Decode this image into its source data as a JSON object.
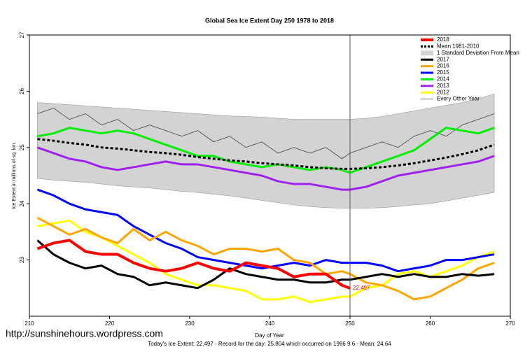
{
  "chart_data": {
    "type": "line",
    "title": "Global Sea Ice Extent Day 250 1978 to 2018",
    "xlabel": "Day of Year",
    "ylabel": "Ice Extent in millions of sq. km.",
    "footer": "Today's Ice Extent: 22.497  - Record for the day: 25.804 which occurred on 1996 9 6  - Mean: 24.64",
    "watermark": "http://sunshinehours.wordpress.com",
    "xlim": [
      210,
      270
    ],
    "xticks": [
      210,
      220,
      230,
      240,
      250,
      260,
      270
    ],
    "ylim": [
      22,
      27
    ],
    "yticks": [
      23,
      24,
      25,
      26,
      27
    ],
    "vline": 250,
    "legend": "upper right",
    "x": [
      211,
      213,
      215,
      217,
      219,
      221,
      223,
      225,
      227,
      229,
      231,
      233,
      235,
      237,
      239,
      241,
      243,
      245,
      247,
      249,
      250,
      252,
      254,
      256,
      258,
      260,
      262,
      264,
      266,
      268
    ],
    "series": [
      {
        "name": "2018",
        "color": "#ff0000",
        "width": 4,
        "values": [
          23.2,
          23.3,
          23.35,
          23.15,
          23.1,
          23.1,
          22.95,
          22.85,
          22.8,
          22.85,
          22.95,
          22.85,
          22.8,
          22.95,
          22.9,
          22.85,
          22.7,
          22.75,
          22.75,
          22.55,
          22.497,
          null,
          null,
          null,
          null,
          null,
          null,
          null,
          null,
          null
        ]
      },
      {
        "name": "Mean 1981-2010",
        "color": "#000000",
        "width": 3,
        "dash": true,
        "values": [
          25.15,
          25.12,
          25.08,
          25.05,
          25.0,
          24.98,
          24.95,
          24.92,
          24.9,
          24.87,
          24.83,
          24.8,
          24.77,
          24.75,
          24.72,
          24.7,
          24.68,
          24.65,
          24.63,
          24.62,
          24.62,
          24.63,
          24.65,
          24.68,
          24.72,
          24.77,
          24.82,
          24.88,
          24.95,
          25.05
        ]
      },
      {
        "name": "1 Standard Deviation From Mean",
        "color": "#d3d3d3",
        "band": true,
        "values": [
          25.8,
          25.78,
          25.76,
          25.74,
          25.72,
          25.7,
          25.68,
          25.66,
          25.64,
          25.62,
          25.6,
          25.58,
          25.56,
          25.55,
          25.54,
          25.52,
          25.5,
          25.5,
          25.5,
          25.5,
          25.5,
          25.52,
          25.55,
          25.6,
          25.65,
          25.7,
          25.75,
          25.8,
          25.87,
          25.95
        ],
        "lower": [
          24.45,
          24.42,
          24.4,
          24.38,
          24.35,
          24.32,
          24.3,
          24.28,
          24.25,
          24.22,
          24.2,
          24.17,
          24.14,
          24.1,
          24.06,
          24.02,
          23.98,
          23.95,
          23.93,
          23.92,
          23.92,
          23.92,
          23.93,
          23.95,
          23.98,
          24.0,
          24.05,
          24.1,
          24.15,
          24.2
        ]
      },
      {
        "name": "2017",
        "color": "#000000",
        "width": 3,
        "values": [
          23.35,
          23.1,
          22.95,
          22.85,
          22.9,
          22.75,
          22.7,
          22.55,
          22.6,
          22.55,
          22.5,
          22.65,
          22.85,
          22.75,
          22.7,
          22.65,
          22.65,
          22.6,
          22.6,
          22.65,
          22.65,
          22.7,
          22.75,
          22.7,
          22.75,
          22.7,
          22.7,
          22.75,
          22.72,
          22.75
        ]
      },
      {
        "name": "2016",
        "color": "#ffa500",
        "width": 3,
        "values": [
          23.75,
          23.6,
          23.45,
          23.55,
          23.4,
          23.3,
          23.55,
          23.35,
          23.5,
          23.35,
          23.25,
          23.1,
          23.2,
          23.2,
          23.15,
          23.2,
          23.0,
          22.95,
          22.75,
          22.8,
          22.75,
          22.6,
          22.55,
          22.45,
          22.3,
          22.35,
          22.5,
          22.65,
          22.85,
          22.95
        ]
      },
      {
        "name": "2015",
        "color": "#0000ff",
        "width": 3,
        "values": [
          24.25,
          24.15,
          24.0,
          23.9,
          23.85,
          23.8,
          23.6,
          23.45,
          23.3,
          23.2,
          23.05,
          23.0,
          22.95,
          22.9,
          22.85,
          22.9,
          22.95,
          22.9,
          23.0,
          22.95,
          22.95,
          22.95,
          22.9,
          22.8,
          22.85,
          22.9,
          23.0,
          23.0,
          23.05,
          23.1
        ]
      },
      {
        "name": "2014",
        "color": "#00ee00",
        "width": 3,
        "values": [
          25.2,
          25.25,
          25.35,
          25.3,
          25.25,
          25.3,
          25.25,
          25.15,
          25.05,
          24.95,
          24.85,
          24.85,
          24.75,
          24.7,
          24.65,
          24.7,
          24.65,
          24.6,
          24.65,
          24.6,
          24.55,
          24.65,
          24.75,
          24.85,
          24.95,
          25.15,
          25.35,
          25.3,
          25.25,
          25.35
        ]
      },
      {
        "name": "2013",
        "color": "#a020f0",
        "width": 3,
        "values": [
          25.0,
          24.9,
          24.8,
          24.75,
          24.65,
          24.6,
          24.65,
          24.7,
          24.75,
          24.7,
          24.7,
          24.65,
          24.6,
          24.55,
          24.5,
          24.4,
          24.35,
          24.35,
          24.3,
          24.25,
          24.25,
          24.3,
          24.4,
          24.5,
          24.55,
          24.6,
          24.65,
          24.7,
          24.75,
          24.85
        ]
      },
      {
        "name": "2012",
        "color": "#ffff00",
        "width": 3,
        "values": [
          23.6,
          23.65,
          23.7,
          23.5,
          23.4,
          23.25,
          23.1,
          22.95,
          22.75,
          22.65,
          22.55,
          22.55,
          22.5,
          22.45,
          22.3,
          22.3,
          22.35,
          22.25,
          22.3,
          22.35,
          22.35,
          22.5,
          22.55,
          22.75,
          22.8,
          22.7,
          22.8,
          22.9,
          23.05,
          23.15
        ]
      },
      {
        "name": "Every Other Year",
        "color": "#404040",
        "width": 0.8,
        "values": [
          25.6,
          25.7,
          25.5,
          25.6,
          25.4,
          25.5,
          25.3,
          25.4,
          25.3,
          25.2,
          25.3,
          25.1,
          25.2,
          25.0,
          25.1,
          24.9,
          25.0,
          24.9,
          25.0,
          24.8,
          24.9,
          25.0,
          25.1,
          25.0,
          25.2,
          25.3,
          25.2,
          25.4,
          25.5,
          25.6
        ]
      }
    ]
  }
}
